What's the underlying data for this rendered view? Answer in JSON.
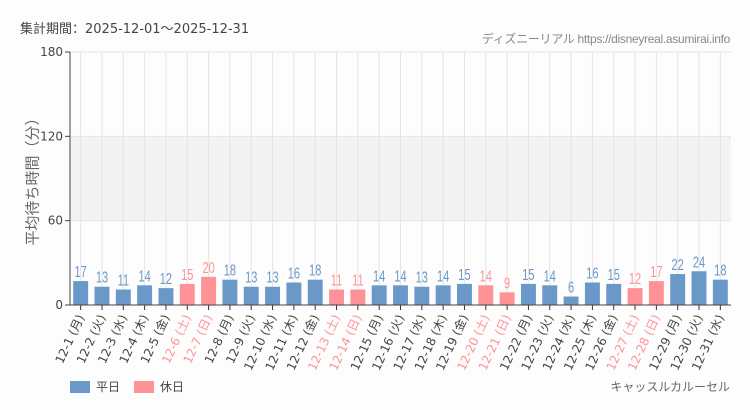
{
  "header": {
    "period_label": "集計期間：2025-12-01〜2025-12-31",
    "credit": "ディズニーリアル https://disneyreal.asumirai.info"
  },
  "legend": {
    "weekday": "平日",
    "holiday": "休日"
  },
  "attraction_name": "キャッスルカルーセル",
  "colors": {
    "weekday": "#6a98c8",
    "holiday": "#ff9296",
    "band": "#f3f3f3",
    "grid": "#e4e4e4"
  },
  "chart_data": {
    "type": "bar",
    "title": "",
    "xlabel": "",
    "ylabel": "平均待ち時間（分）",
    "ylim": [
      0,
      180
    ],
    "yticks": [
      0,
      60,
      120,
      180
    ],
    "shaded_band": [
      60,
      120
    ],
    "grid": true,
    "legend_position": "bottom-left",
    "categories": [
      "12-1 (月)",
      "12-2 (火)",
      "12-3 (水)",
      "12-4 (木)",
      "12-5 (金)",
      "12-6 (土)",
      "12-7 (日)",
      "12-8 (月)",
      "12-9 (火)",
      "12-10 (水)",
      "12-11 (木)",
      "12-12 (金)",
      "12-13 (土)",
      "12-14 (日)",
      "12-15 (月)",
      "12-16 (火)",
      "12-17 (水)",
      "12-18 (木)",
      "12-19 (金)",
      "12-20 (土)",
      "12-21 (日)",
      "12-22 (月)",
      "12-23 (火)",
      "12-24 (水)",
      "12-25 (木)",
      "12-26 (金)",
      "12-27 (土)",
      "12-28 (日)",
      "12-29 (月)",
      "12-30 (火)",
      "12-31 (水)"
    ],
    "values": [
      17,
      13,
      11,
      14,
      12,
      15,
      20,
      18,
      13,
      13,
      16,
      18,
      11,
      11,
      14,
      14,
      13,
      14,
      15,
      14,
      9,
      15,
      14,
      6,
      16,
      15,
      12,
      17,
      22,
      24,
      18
    ],
    "day_type": [
      "weekday",
      "weekday",
      "weekday",
      "weekday",
      "weekday",
      "holiday",
      "holiday",
      "weekday",
      "weekday",
      "weekday",
      "weekday",
      "weekday",
      "holiday",
      "holiday",
      "weekday",
      "weekday",
      "weekday",
      "weekday",
      "weekday",
      "holiday",
      "holiday",
      "weekday",
      "weekday",
      "weekday",
      "weekday",
      "weekday",
      "holiday",
      "holiday",
      "weekday",
      "weekday",
      "weekday"
    ],
    "series": [
      {
        "name": "平日"
      },
      {
        "name": "休日"
      }
    ]
  }
}
